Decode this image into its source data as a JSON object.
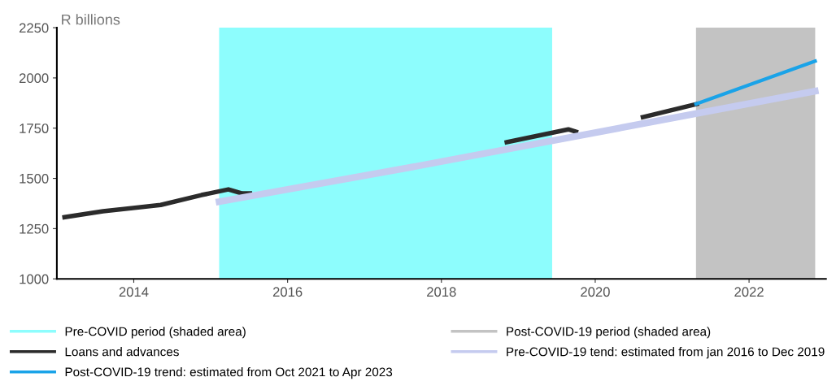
{
  "chart_data": {
    "type": "line",
    "ylabel": "R billions",
    "xlim": [
      2013,
      2023
    ],
    "xticks": [
      2014,
      2016,
      2018,
      2020,
      2022
    ],
    "ylim": [
      1000,
      2250
    ],
    "yticks": [
      1000,
      1250,
      1500,
      1750,
      2000,
      2250
    ],
    "grid": false,
    "legend": "bottom",
    "bands": [
      {
        "axis": "x",
        "from": 2015.11,
        "to": 2019.44,
        "label": "Pre-COVID period (shaded area)",
        "color": "#8dfdfd"
      },
      {
        "axis": "x",
        "from": 2021.31,
        "to": 2022.86,
        "label": "Post-COVID-19 period (shaded area)",
        "color": "#c3c3c3"
      }
    ],
    "series": [
      {
        "name": "Loans and advances",
        "color": "#2b2b2b",
        "x": [
          2013.1,
          2013.6,
          2014.35,
          2014.88,
          2015.23,
          2015.41,
          2015.51,
          2016.0,
          2018.5,
          2018.85,
          2019.65,
          2019.75,
          2020.2,
          2020.62,
          2021.32
        ],
        "values": [
          1307,
          1336,
          1368,
          1417,
          1445,
          1425,
          1425,
          null,
          null,
          1680,
          1744,
          1732,
          null,
          1805,
          1870
        ]
      },
      {
        "name": "Pre-COVID-19 tend: estimated from jan 2016 to Dec 2019",
        "color": "#c5cbef",
        "x": [
          2015.11,
          2017.53,
          2022.86
        ],
        "values": [
          1384,
          1550,
          1934
        ]
      },
      {
        "name": "Post-COVID-19 trend: estimated from Oct 2021 to Apr 2023",
        "color": "#1aa3e8",
        "x": [
          2021.31,
          2022.86
        ],
        "values": [
          1870,
          2084
        ]
      }
    ]
  }
}
